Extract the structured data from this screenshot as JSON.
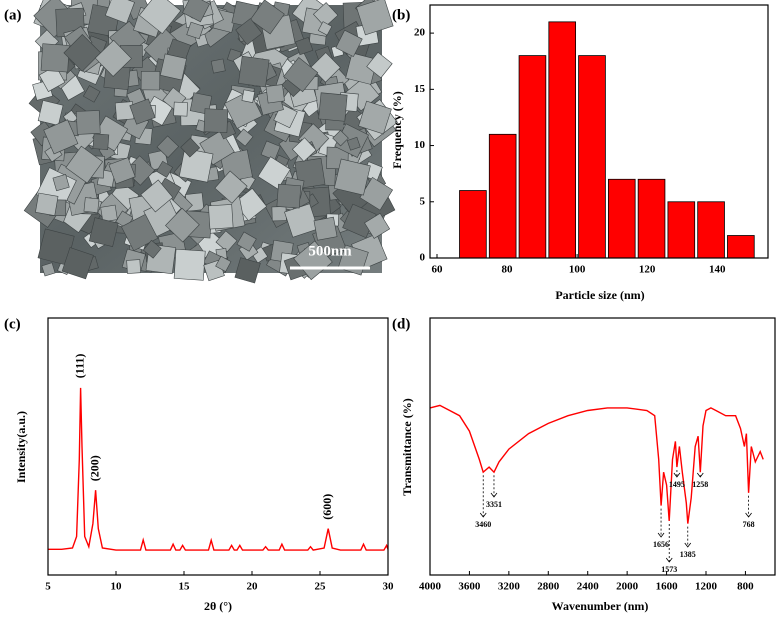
{
  "image_panel": {
    "label": "(a)",
    "scale_bar": "500nm"
  },
  "chart_data": [
    {
      "type": "histogram",
      "label": "(b)",
      "xlabel": "Particle size (nm)",
      "ylabel": "Frequency (%)",
      "color": "#ff0000",
      "bins": [
        66,
        74.5,
        83,
        91.5,
        100,
        108.5,
        117,
        125.5,
        134,
        142.5,
        151
      ],
      "values": [
        6,
        11,
        18,
        21,
        18,
        7,
        7,
        5,
        5,
        2
      ],
      "xlim": [
        58,
        154.5
      ],
      "xticks": [
        60,
        80,
        100,
        120,
        140
      ],
      "ylim": [
        0,
        22.5
      ],
      "yticks": [
        0,
        5,
        10,
        15,
        20
      ]
    },
    {
      "type": "line",
      "label": "(c)",
      "xlabel": "2θ (°)",
      "ylabel": "Intensity(a.u.)",
      "color": "#ff0000",
      "x": [
        5,
        6,
        6.8,
        7.1,
        7.3,
        7.4,
        7.5,
        7.7,
        8.0,
        8.3,
        8.5,
        8.7,
        9.0,
        10,
        11.8,
        12.0,
        12.2,
        14,
        14.2,
        14.4,
        14.7,
        14.9,
        15.1,
        16.8,
        17,
        17.2,
        18.3,
        18.5,
        18.7,
        18.9,
        19.1,
        19.3,
        20.8,
        21,
        21.2,
        22,
        22.2,
        22.4,
        24.1,
        24.3,
        24.5,
        25.3,
        25.6,
        25.9,
        26.5,
        28,
        28.2,
        28.4,
        29.7,
        29.9,
        30
      ],
      "values": [
        10,
        10,
        10.5,
        15,
        45,
        72.8,
        50,
        15,
        11,
        20,
        33,
        18,
        10.5,
        9.7,
        9.7,
        13.6,
        9.7,
        9.7,
        12,
        9.7,
        9.7,
        11.5,
        9.7,
        9.7,
        13.5,
        9.7,
        9.7,
        11.5,
        9.7,
        9.7,
        11.5,
        9.7,
        9.7,
        11,
        9.7,
        9.7,
        12,
        9.7,
        9.7,
        11,
        9.7,
        10.5,
        18,
        10.5,
        9.7,
        9.7,
        12,
        9.7,
        9.7,
        11.5,
        10
      ],
      "xlim": [
        5,
        30
      ],
      "xticks": [
        5,
        10,
        15,
        20,
        25,
        30
      ],
      "ylim": [
        0,
        100
      ],
      "annotations": [
        {
          "text": "(111)",
          "x": 7.4,
          "y": 72.8
        },
        {
          "text": "(200)",
          "x": 8.5,
          "y": 33
        },
        {
          "text": "(600)",
          "x": 25.6,
          "y": 18
        }
      ]
    },
    {
      "type": "line",
      "label": "(d)",
      "xlabel": "Wavenumber (nm)",
      "ylabel": "Transmittance (%)",
      "color": "#ff0000",
      "x": [
        4000,
        3900,
        3800,
        3700,
        3600,
        3500,
        3460,
        3400,
        3351,
        3300,
        3200,
        3000,
        2800,
        2600,
        2400,
        2200,
        2000,
        1800,
        1720,
        1680,
        1656,
        1630,
        1600,
        1573,
        1540,
        1510,
        1495,
        1470,
        1440,
        1400,
        1385,
        1350,
        1310,
        1280,
        1258,
        1230,
        1200,
        1150,
        1100,
        1000,
        900,
        850,
        810,
        790,
        768,
        740,
        700,
        650,
        620
      ],
      "values": [
        65,
        66,
        64,
        62,
        56,
        45,
        40,
        42,
        40,
        44,
        49,
        55,
        59,
        62,
        64,
        65,
        65,
        64,
        62,
        45,
        27,
        40,
        35,
        21,
        45,
        52,
        42,
        50,
        40,
        28,
        20,
        30,
        50,
        54,
        40,
        58,
        64,
        65,
        64,
        62,
        62,
        57,
        50,
        55,
        32,
        50,
        44,
        48,
        45
      ],
      "xlim": [
        4000,
        500
      ],
      "xticks": [
        4000,
        3600,
        3200,
        2800,
        2400,
        2000,
        1600,
        1200,
        800
      ],
      "ylim": [
        0,
        100
      ],
      "peaks": [
        3460,
        3351,
        1656,
        1573,
        1495,
        1385,
        1258,
        768
      ]
    }
  ]
}
